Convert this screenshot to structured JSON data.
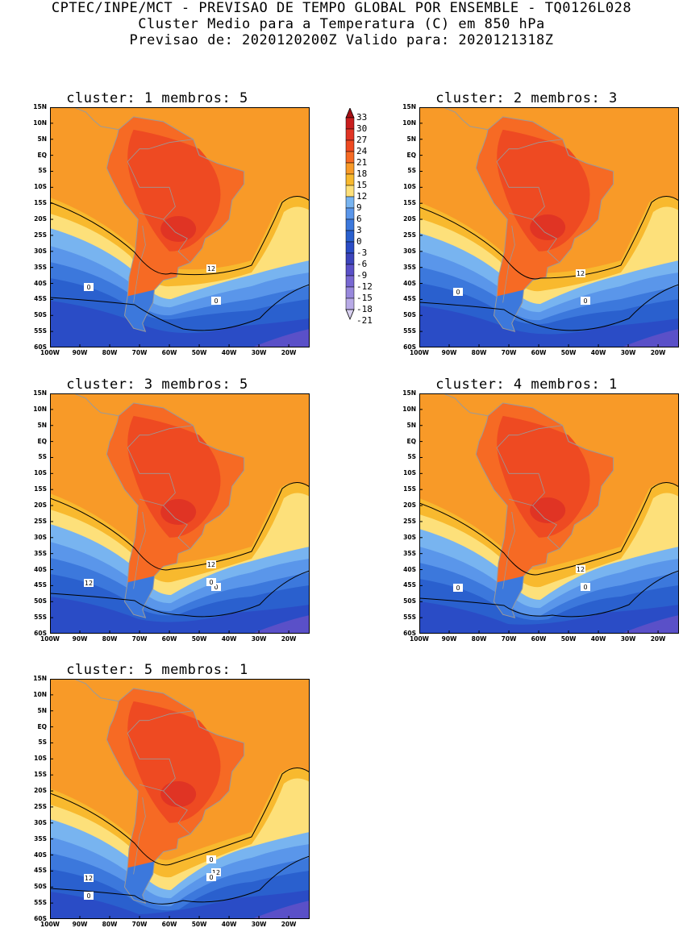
{
  "header": {
    "line1": "CPTEC/INPE/MCT - PREVISAO DE TEMPO GLOBAL POR ENSEMBLE - TQ0126L028",
    "line2": "Cluster Medio para a Temperatura (C) em 850 hPa",
    "line3": "Previsao de: 2020120200Z   Valido para: 2020121318Z"
  },
  "axes": {
    "lat_labels": [
      "15N",
      "10N",
      "5N",
      "EQ",
      "5S",
      "10S",
      "15S",
      "20S",
      "25S",
      "30S",
      "35S",
      "40S",
      "45S",
      "50S",
      "55S",
      "60S"
    ],
    "lon_labels": [
      "100W",
      "90W",
      "80W",
      "70W",
      "60W",
      "50W",
      "40W",
      "30W",
      "20W"
    ]
  },
  "colorbar": {
    "levels": [
      "33",
      "30",
      "27",
      "24",
      "21",
      "18",
      "15",
      "12",
      "9",
      "6",
      "3",
      "0",
      "-3",
      "-6",
      "-9",
      "-12",
      "-15",
      "-18",
      "-21"
    ],
    "colors": [
      "#a50f15",
      "#c81e1e",
      "#e03424",
      "#ee4a22",
      "#f66a24",
      "#f89a28",
      "#f8b92e",
      "#fde07a",
      "#78b4f0",
      "#5a96ea",
      "#3c78dc",
      "#2a60ce",
      "#2a4cc6",
      "#3c44bc",
      "#5a50c8",
      "#7868d2",
      "#9888dc",
      "#b8aae6",
      "#d8d0f0"
    ],
    "ocean_color": "#f6a02a"
  },
  "panels": [
    {
      "title": "cluster: 1   membros: 5",
      "contour_labels": [
        "12",
        "0",
        "0"
      ]
    },
    {
      "title": "cluster: 2   membros: 3",
      "contour_labels": [
        "12",
        "0",
        "0"
      ]
    },
    {
      "title": "cluster: 3   membros: 5",
      "contour_labels": [
        "12",
        "12",
        "0",
        "0"
      ]
    },
    {
      "title": "cluster: 4   membros: 1",
      "contour_labels": [
        "12",
        "0",
        "0"
      ]
    },
    {
      "title": "cluster: 5   membros: 1",
      "contour_labels": [
        "0",
        "12",
        "12",
        "0",
        "0"
      ]
    }
  ]
}
